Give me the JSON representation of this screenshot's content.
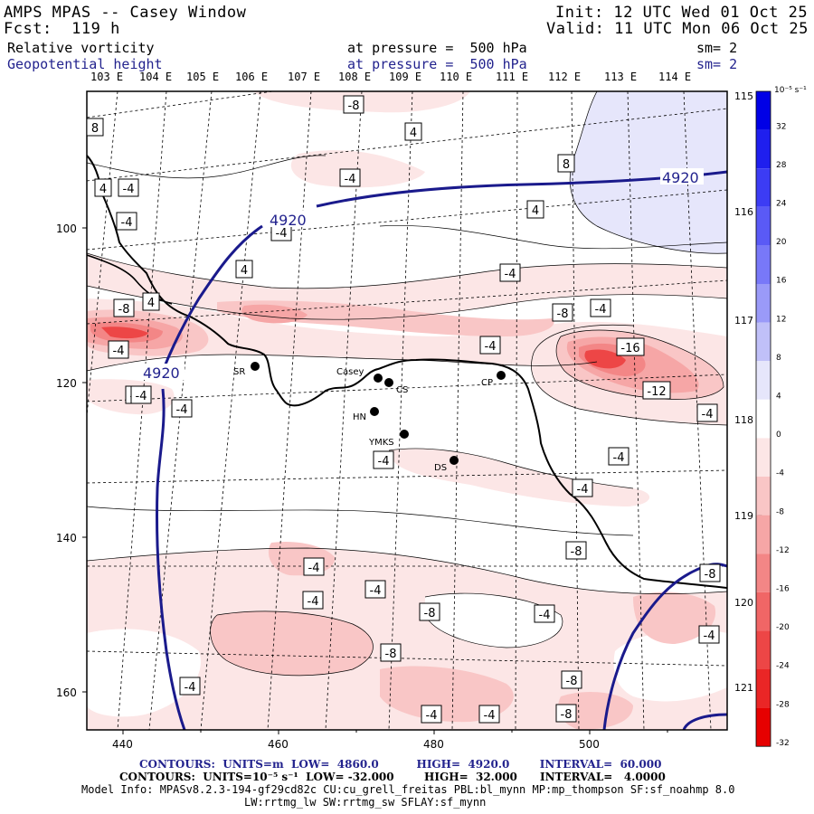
{
  "header": {
    "title": "AMPS MPAS -- Casey Window",
    "fcst_label": "Fcst:",
    "fcst_value": "119 h",
    "init": "Init: 12 UTC Wed 01 Oct 25",
    "valid": "Valid: 11 UTC Mon 06 Oct 25",
    "field1_name": "Relative vorticity",
    "field1_level": "at pressure =  500 hPa",
    "field1_sm": "sm= 2",
    "field2_name": "Geopotential height",
    "field2_level": "at pressure =  500 hPa",
    "field2_sm": "sm= 2"
  },
  "top_longitudes": [
    "103 E",
    "104 E",
    "105 E",
    "106 E",
    "107 E",
    "108 E",
    "109 E",
    "110 E",
    "111 E",
    "112 E",
    "113 E",
    "114 E"
  ],
  "right_longitudes": [
    "115 E",
    "116 E",
    "117 E",
    "118 E",
    "119 E",
    "120 E",
    "121 E"
  ],
  "x_ticks": [
    "440",
    "460",
    "480",
    "500"
  ],
  "y_ticks": [
    "100",
    "120",
    "140",
    "160"
  ],
  "colorbar": {
    "units": "10⁻⁵ s⁻¹",
    "labels": [
      "32",
      "28",
      "24",
      "20",
      "16",
      "12",
      "8",
      "4",
      "0",
      "-4",
      "-8",
      "-12",
      "-16",
      "-20",
      "-24",
      "-28",
      "-32"
    ],
    "colors": [
      "#0000e6",
      "#1f1fee",
      "#3c3cf4",
      "#5a5af6",
      "#7878f8",
      "#9a9af8",
      "#c0c0f8",
      "#e6e6fb",
      "#ffffff",
      "#fce6e6",
      "#f9c6c6",
      "#f6a6a6",
      "#f38686",
      "#f06666",
      "#ed4646",
      "#ea2626",
      "#e60000"
    ]
  },
  "stations": [
    {
      "name": "SR"
    },
    {
      "name": "Casey"
    },
    {
      "name": "CS"
    },
    {
      "name": "CP"
    },
    {
      "name": "HN"
    },
    {
      "name": "YMKS"
    },
    {
      "name": "DS"
    }
  ],
  "height_labels": [
    "4920",
    "4920",
    "4920"
  ],
  "vort_labels": [
    "8",
    "-8",
    "4",
    "-4",
    "4",
    "-4",
    "-4",
    "4",
    "8",
    "-4",
    "4",
    "4",
    "-4",
    "-8",
    "-4",
    "-4",
    "-8",
    "-4",
    "-16",
    "-12",
    "-4",
    "-4",
    "-4",
    "-8",
    "-4",
    "-4",
    "-8",
    "-4",
    "-4",
    "-4",
    "-8",
    "-4",
    "-8",
    "-4",
    "-8",
    "-4",
    "-8",
    "-4",
    "-4",
    "-8",
    "-4",
    "-4",
    "-4"
  ],
  "footer": {
    "line1_a": "CONTOURS:  UNITS=m  LOW=  4860.0",
    "line1_b": "HIGH=  4920.0",
    "line1_c": "INTERVAL=  60.000",
    "line2": "CONTOURS:  UNITS=10⁻⁵ s⁻¹  LOW= -32.000        HIGH=  32.000      INTERVAL=   4.0000",
    "line3": "Model Info: MPASv8.2.3-194-gf29cd82c CU:cu_grell_freitas PBL:bl_mynn MP:mp_thompson SF:sf_noahmp 8.0",
    "line4": "LW:rrtmg_lw SW:rrtmg_sw SFLAY:sf_mynn"
  }
}
